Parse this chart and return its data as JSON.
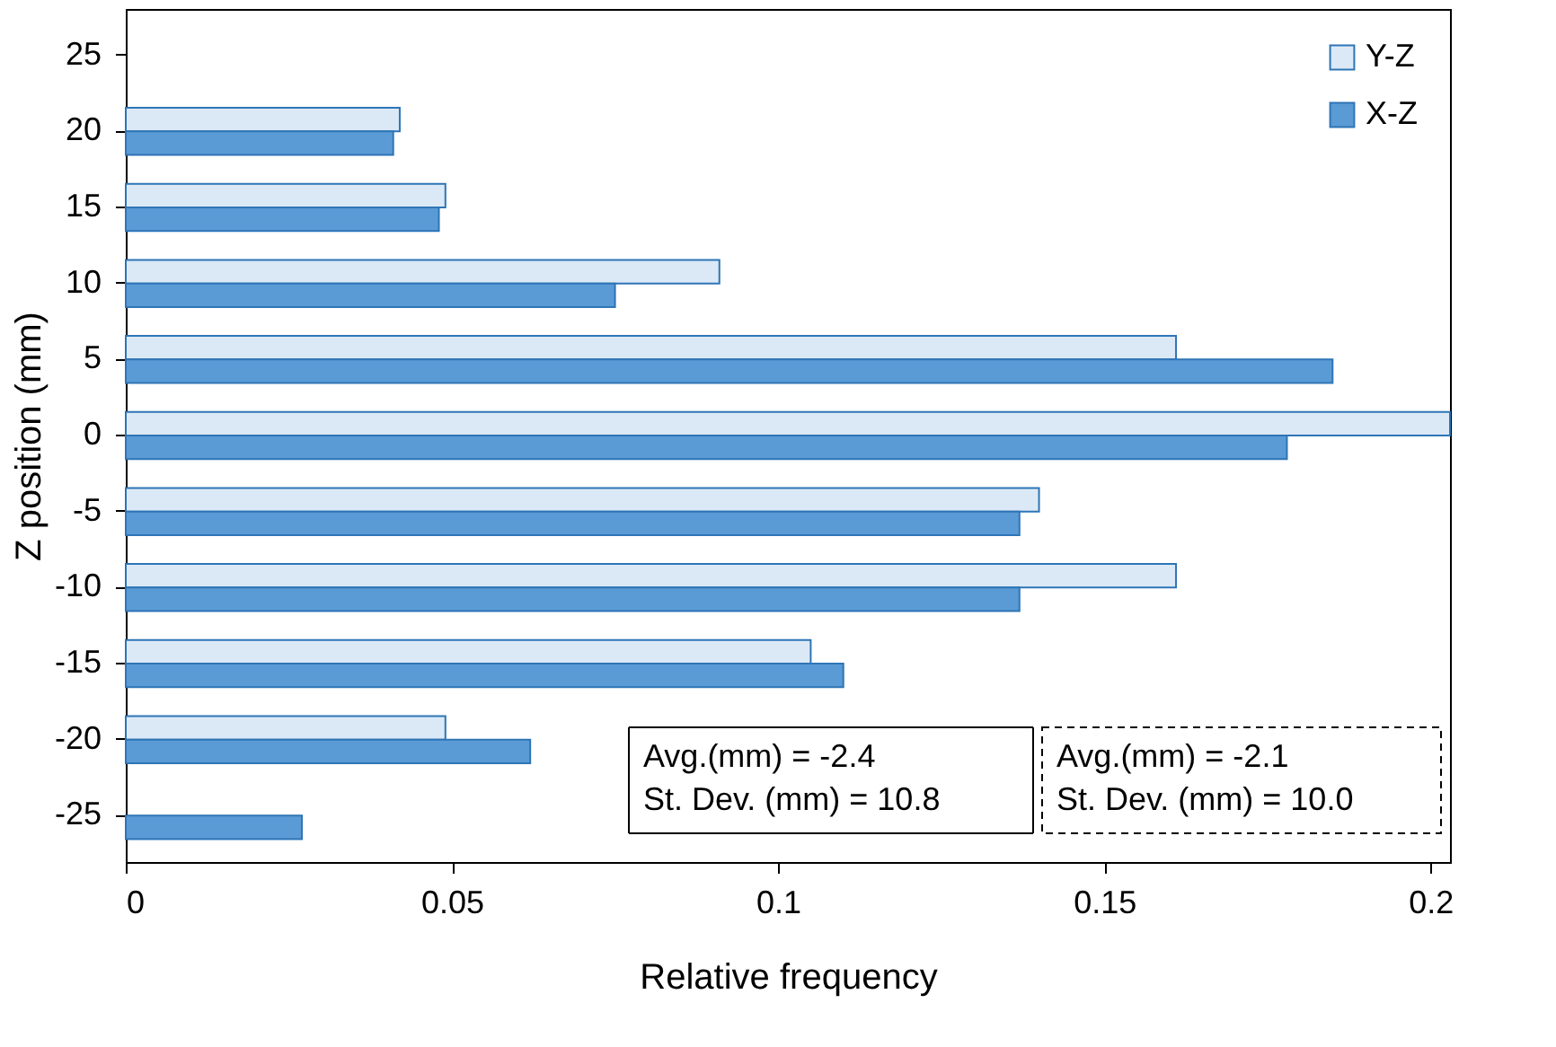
{
  "chart_data": {
    "type": "bar",
    "orientation": "horizontal",
    "xlabel": "Relative frequency",
    "ylabel": "Z position (mm)",
    "categories": [
      "25",
      "20",
      "15",
      "10",
      "5",
      "0",
      "-5",
      "-10",
      "-15",
      "-20",
      "-25"
    ],
    "series": [
      {
        "name": "Y-Z",
        "color": "#dbe9f6",
        "values": [
          null,
          0.042,
          0.049,
          0.091,
          0.161,
          0.203,
          0.14,
          0.161,
          0.105,
          0.049,
          null
        ]
      },
      {
        "name": "X-Z",
        "color": "#5b9bd5",
        "values": [
          null,
          0.041,
          0.048,
          0.075,
          0.185,
          0.178,
          0.137,
          0.137,
          0.11,
          0.062,
          0.027
        ]
      }
    ],
    "xlim": [
      0,
      0.203
    ],
    "xticks": [
      0,
      0.05,
      0.1,
      0.15,
      0.2
    ],
    "grid": false,
    "legend": "top right",
    "annotations": [
      "Avg.(mm)  = -2.4\nSt. Dev. (mm) = 10.8",
      "Avg.(mm)  = -2.1\nSt. Dev. (mm) = 10.0"
    ]
  }
}
